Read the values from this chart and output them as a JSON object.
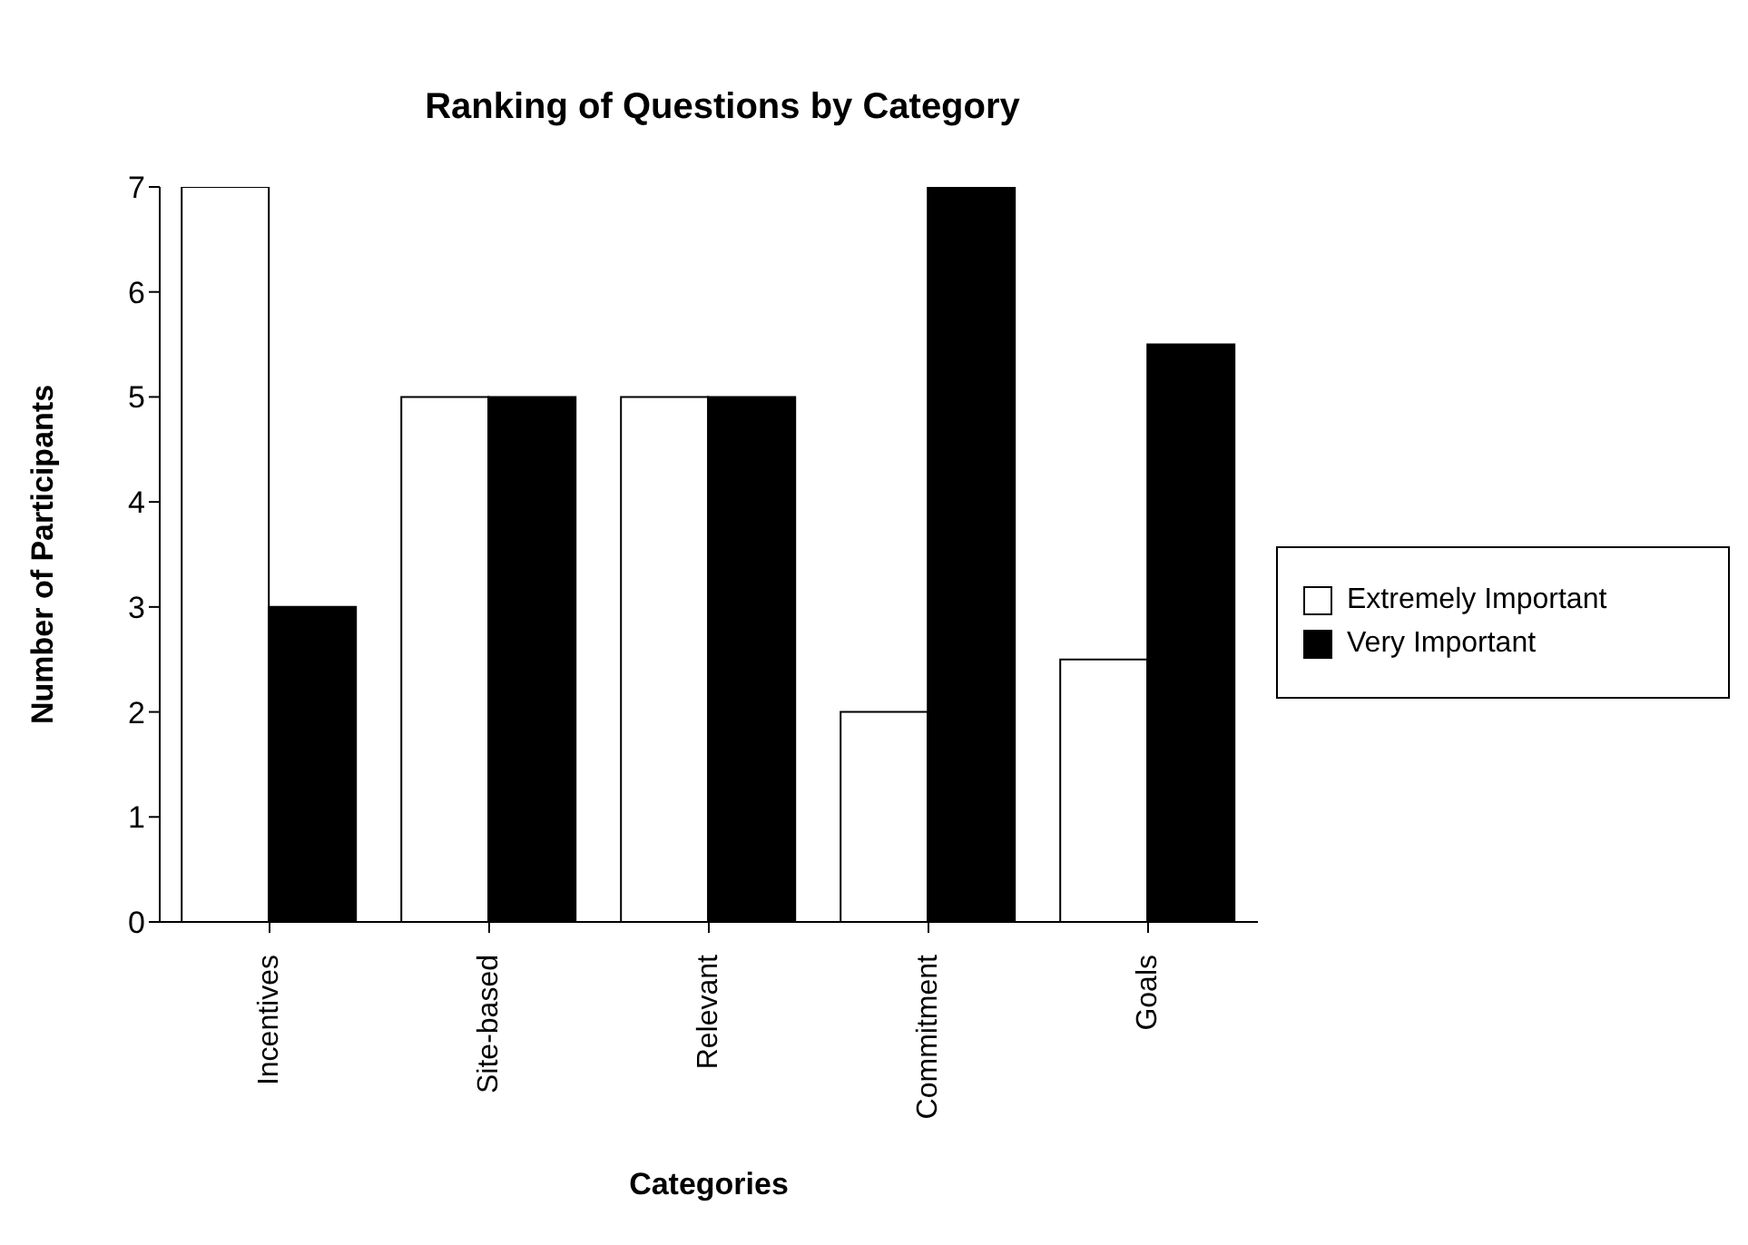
{
  "chart_data": {
    "type": "bar",
    "title": "Ranking of Questions by Category",
    "xlabel": "Categories",
    "ylabel": "Number of Participants",
    "categories": [
      "Incentives",
      "Site-based",
      "Relevant",
      "Commitment",
      "Goals"
    ],
    "series": [
      {
        "name": "Extremely Important",
        "color": "#ffffff",
        "values": [
          7,
          5,
          5,
          2,
          2.5
        ]
      },
      {
        "name": "Very Important",
        "color": "#000000",
        "values": [
          3,
          5,
          5,
          7,
          5.5
        ]
      }
    ],
    "ylim": [
      0,
      7
    ],
    "yticks": [
      0,
      1,
      2,
      3,
      4,
      5,
      6,
      7
    ],
    "grid": false,
    "legend": "right"
  }
}
